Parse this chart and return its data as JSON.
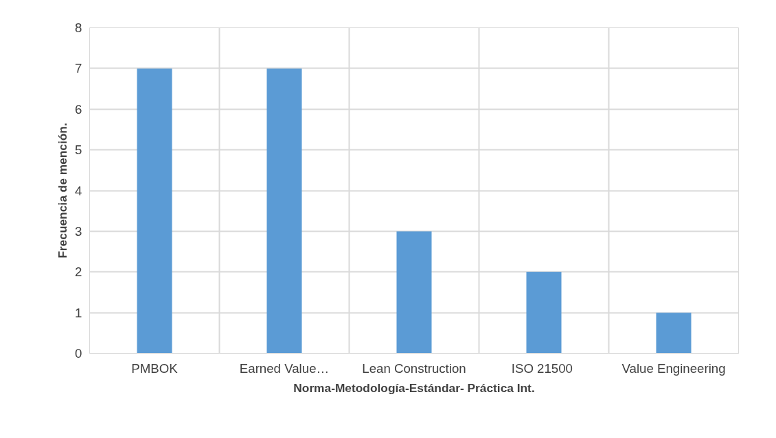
{
  "chart_data": {
    "type": "bar",
    "xlabel": "Norma-Metodología-Estándar- Práctica Int.",
    "ylabel": "Frecuencia de mención.",
    "categories": [
      "PMBOK",
      "Earned Value…",
      "Lean Construction",
      "ISO  21500",
      "Value Engineering"
    ],
    "values": [
      7,
      7,
      3,
      2,
      1
    ],
    "color": "#5b9bd5",
    "ylim": [
      0,
      8
    ],
    "yticks": [
      0,
      1,
      2,
      3,
      4,
      5,
      6,
      7,
      8
    ],
    "grid": true
  }
}
